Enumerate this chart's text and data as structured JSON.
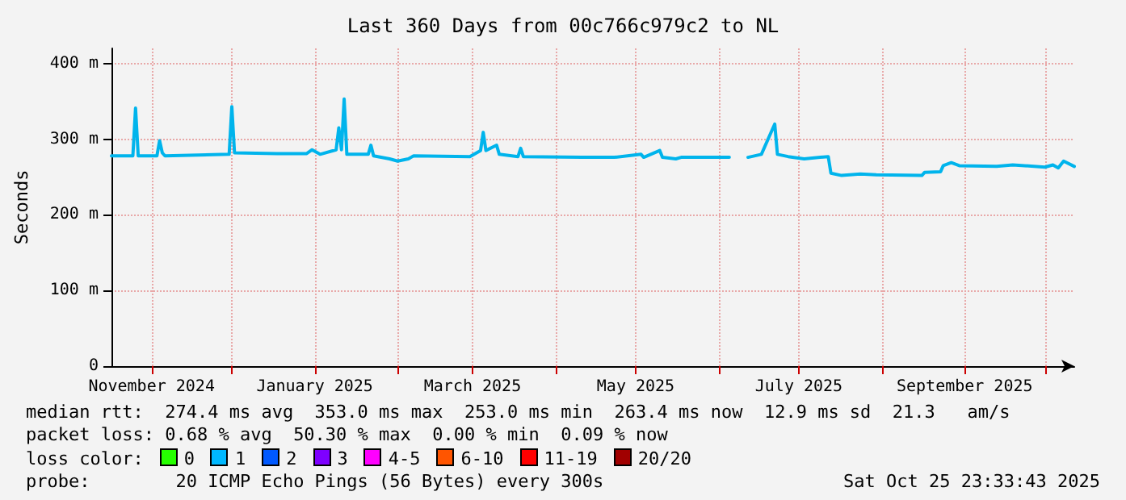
{
  "chart_data": {
    "type": "line",
    "title": "Last 360 Days from 00c766c979c2 to NL",
    "ylabel": "Seconds",
    "x": [
      "2024-10-17",
      "2024-10-22",
      "2024-10-25",
      "2024-10-26",
      "2024-10-27",
      "2024-11-03",
      "2024-11-04",
      "2024-11-05",
      "2024-11-06",
      "2024-11-30",
      "2024-12-01",
      "2024-12-02",
      "2024-12-18",
      "2024-12-29",
      "2024-12-31",
      "2025-01-03",
      "2025-01-09",
      "2025-01-10",
      "2025-01-11",
      "2025-01-12",
      "2025-01-13",
      "2025-01-21",
      "2025-01-22",
      "2025-01-23",
      "2025-01-29",
      "2025-02-01",
      "2025-02-05",
      "2025-02-07",
      "2025-02-28",
      "2025-03-04",
      "2025-03-05",
      "2025-03-06",
      "2025-03-10",
      "2025-03-11",
      "2025-03-18",
      "2025-03-19",
      "2025-03-20",
      "2025-04-11",
      "2025-04-23",
      "2025-05-03",
      "2025-05-04",
      "2025-05-10",
      "2025-05-11",
      "2025-05-16",
      "2025-05-18",
      "2025-06-05",
      "2025-06-08",
      "2025-06-12",
      "2025-06-17",
      "2025-06-22",
      "2025-06-23",
      "2025-06-27",
      "2025-07-03",
      "2025-07-12",
      "2025-07-13",
      "2025-07-17",
      "2025-07-24",
      "2025-07-30",
      "2025-08-16",
      "2025-08-17",
      "2025-08-23",
      "2025-08-24",
      "2025-08-27",
      "2025-08-30",
      "2025-09-13",
      "2025-09-19",
      "2025-10-01",
      "2025-10-04",
      "2025-10-06",
      "2025-10-08",
      "2025-10-12"
    ],
    "series": [
      {
        "color": "#00b4ec",
        "values": [
          278,
          278,
          278,
          341,
          278,
          278,
          298,
          282,
          278,
          280,
          343,
          282,
          281,
          281,
          286,
          280,
          286,
          315,
          286,
          353,
          280,
          280,
          292,
          278,
          274,
          271,
          274,
          278,
          277,
          285,
          309,
          285,
          292,
          280,
          277,
          288,
          277,
          276,
          276,
          280,
          276,
          285,
          276,
          274,
          276,
          276,
          null,
          276,
          280,
          320,
          280,
          277,
          274,
          277,
          255,
          252,
          254,
          253,
          252,
          256,
          257,
          265,
          269,
          265,
          264,
          266,
          263,
          266,
          262,
          271,
          264
        ]
      }
    ],
    "xlim": [
      "2024-10-17",
      "2025-10-12"
    ],
    "xticks": [
      {
        "value": "2024-11-01",
        "label": "November 2024"
      },
      {
        "value": "2024-12-01",
        "label": null
      },
      {
        "value": "2025-01-01",
        "label": "January 2025"
      },
      {
        "value": "2025-02-01",
        "label": null
      },
      {
        "value": "2025-03-01",
        "label": "March 2025"
      },
      {
        "value": "2025-04-01",
        "label": null
      },
      {
        "value": "2025-05-01",
        "label": "May 2025"
      },
      {
        "value": "2025-06-01",
        "label": null
      },
      {
        "value": "2025-07-01",
        "label": "July 2025"
      },
      {
        "value": "2025-08-01",
        "label": null
      },
      {
        "value": "2025-09-01",
        "label": "September 2025"
      },
      {
        "value": "2025-10-01",
        "label": null
      }
    ],
    "ylim": [
      0,
      420
    ],
    "yticks": [
      0,
      {
        "value": 100,
        "label": "100 m"
      },
      {
        "value": 200,
        "label": "200 m"
      },
      {
        "value": 300,
        "label": "300 m"
      },
      {
        "value": 400,
        "label": "400 m"
      }
    ],
    "grid": true,
    "marker": "none",
    "line_style": "solid",
    "annotations": [
      "median rtt:  274.4 ms avg  353.0 ms max  253.0 ms min  263.4 ms now  12.9 ms sd  21.3   am/s",
      "packet loss: 0.68 % avg  50.30 % max  0.00 % min  0.09 % now",
      "loss color:",
      "0",
      "1",
      "2",
      "3",
      "4-5",
      "6-10",
      "11-19",
      "20/20",
      "probe:        20 ICMP Echo Pings (56 Bytes) every 300s",
      "Sat Oct 25 23:33:43 2025"
    ]
  }
}
